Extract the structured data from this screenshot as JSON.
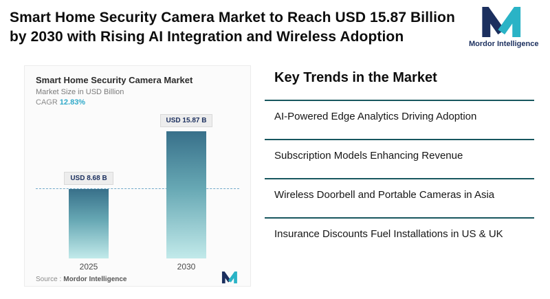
{
  "header": {
    "title": "Smart Home Security Camera Market to Reach USD 15.87 Billion by 2030 with Rising AI Integration and Wireless Adoption",
    "logo_text": "Mordor Intelligence"
  },
  "chart": {
    "title": "Smart Home Security Camera Market",
    "subtitle": "Market Size in USD Billion",
    "cagr_label": "CAGR",
    "cagr_value": "12.83%",
    "source_label": "Source :",
    "source_value": "Mordor Intelligence"
  },
  "chart_data": {
    "type": "bar",
    "title": "Smart Home Security Camera Market",
    "ylabel": "Market Size in USD Billion",
    "categories": [
      "2025",
      "2030"
    ],
    "values": [
      8.68,
      15.87
    ],
    "bar_labels": [
      "USD 8.68 B",
      "USD 15.87 B"
    ],
    "cagr": "12.83%",
    "ylim": [
      0,
      18
    ],
    "grid": false,
    "annotations": [
      "dashed horizontal reference line at 8.68 (2025 level)"
    ]
  },
  "trends": {
    "heading": "Key Trends in the Market",
    "items": [
      "AI-Powered Edge Analytics Driving Adoption",
      "Subscription Models Enhancing Revenue",
      "Wireless Doorbell and Portable Cameras in Asia",
      "Insurance Discounts Fuel Installations in US & UK"
    ]
  },
  "colors": {
    "accent_teal": "#2ab3c6",
    "dark_navy": "#1b2f5e",
    "bar_gradient_top": "#38708a",
    "bar_gradient_bottom": "#c2eaea",
    "divider": "#17565e",
    "reference_line": "#6fa8c9"
  }
}
